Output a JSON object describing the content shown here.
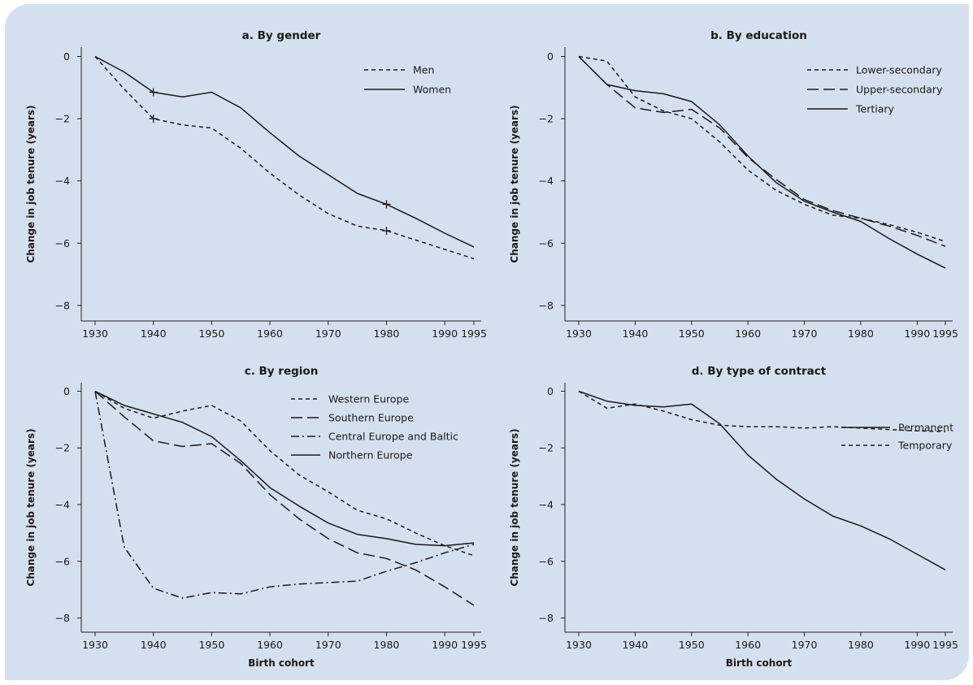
{
  "chart_data": [
    {
      "type": "line",
      "title": "a. By gender",
      "ylabel": "Change in job tenure (years)",
      "xlabel": "",
      "xlim": [
        1930,
        1995
      ],
      "ylim": [
        -8.5,
        0.3
      ],
      "xticks": [
        1930,
        1940,
        1950,
        1960,
        1970,
        1980,
        1990,
        1995
      ],
      "yticks": [
        0,
        -2,
        -4,
        -6,
        -8
      ],
      "legend": "top-right",
      "x": [
        1930,
        1935,
        1940,
        1945,
        1950,
        1955,
        1960,
        1965,
        1970,
        1975,
        1980,
        1985,
        1990,
        1995
      ],
      "series": [
        {
          "name": "Men",
          "dash": "short",
          "values": [
            0,
            -1.05,
            -2.0,
            -2.2,
            -2.3,
            -2.95,
            -3.75,
            -4.45,
            -5.05,
            -5.45,
            -5.6,
            -5.9,
            -6.2,
            -6.5
          ]
        },
        {
          "name": "Women",
          "dash": "solid",
          "values": [
            0,
            -0.5,
            -1.15,
            -1.3,
            -1.15,
            -1.65,
            -2.45,
            -3.2,
            -3.8,
            -4.4,
            -4.75,
            -5.2,
            -5.68,
            -6.12
          ]
        }
      ],
      "markers": [
        {
          "x": 1940,
          "y": -1.15
        },
        {
          "x": 1940,
          "y": -2.0
        },
        {
          "x": 1980,
          "y": -4.75
        },
        {
          "x": 1980,
          "y": -5.6
        }
      ]
    },
    {
      "type": "line",
      "title": "b. By education",
      "ylabel": "Change in job tenure (years)",
      "xlabel": "",
      "xlim": [
        1930,
        1995
      ],
      "ylim": [
        -8.5,
        0.3
      ],
      "xticks": [
        1930,
        1940,
        1950,
        1960,
        1970,
        1980,
        1990,
        1995
      ],
      "yticks": [
        0,
        -2,
        -4,
        -6,
        -8
      ],
      "legend": "top-right",
      "x": [
        1930,
        1935,
        1940,
        1945,
        1950,
        1955,
        1960,
        1965,
        1970,
        1975,
        1980,
        1985,
        1990,
        1995
      ],
      "series": [
        {
          "name": "Lower-secondary",
          "dash": "short",
          "values": [
            0,
            -0.15,
            -1.3,
            -1.75,
            -2.0,
            -2.75,
            -3.65,
            -4.3,
            -4.75,
            -5.1,
            -5.2,
            -5.4,
            -5.65,
            -5.95
          ]
        },
        {
          "name": "Upper-secondary",
          "dash": "long",
          "values": [
            0,
            -0.9,
            -1.65,
            -1.8,
            -1.7,
            -2.3,
            -3.25,
            -3.95,
            -4.6,
            -4.95,
            -5.2,
            -5.45,
            -5.75,
            -6.1
          ]
        },
        {
          "name": "Tertiary",
          "dash": "solid",
          "values": [
            0,
            -0.9,
            -1.1,
            -1.2,
            -1.45,
            -2.2,
            -3.2,
            -4.05,
            -4.65,
            -5.0,
            -5.3,
            -5.85,
            -6.35,
            -6.8
          ]
        }
      ]
    },
    {
      "type": "line",
      "title": "c. By region",
      "ylabel": "Change in job tenure (years)",
      "xlabel": "Birth cohort",
      "xlim": [
        1930,
        1995
      ],
      "ylim": [
        -8.5,
        0.3
      ],
      "xticks": [
        1930,
        1940,
        1950,
        1960,
        1970,
        1980,
        1990,
        1995
      ],
      "yticks": [
        0,
        -2,
        -4,
        -6,
        -8
      ],
      "legend": "top-right",
      "x": [
        1930,
        1935,
        1940,
        1945,
        1950,
        1955,
        1960,
        1965,
        1970,
        1975,
        1980,
        1985,
        1990,
        1995
      ],
      "series": [
        {
          "name": "Western Europe",
          "dash": "short",
          "values": [
            0,
            -0.6,
            -0.95,
            -0.7,
            -0.5,
            -1.05,
            -2.1,
            -2.95,
            -3.55,
            -4.2,
            -4.5,
            -5.0,
            -5.45,
            -5.8
          ]
        },
        {
          "name": "Southern Europe",
          "dash": "long",
          "values": [
            0,
            -0.9,
            -1.75,
            -1.95,
            -1.85,
            -2.55,
            -3.65,
            -4.5,
            -5.2,
            -5.7,
            -5.9,
            -6.3,
            -6.9,
            -7.55
          ]
        },
        {
          "name": "Central Europe and Baltic",
          "dash": "dashdot",
          "values": [
            0,
            -5.5,
            -6.95,
            -7.3,
            -7.1,
            -7.15,
            -6.9,
            -6.8,
            -6.75,
            -6.7,
            -6.35,
            -6.05,
            -5.7,
            -5.4
          ]
        },
        {
          "name": "Northern Europe",
          "dash": "solid",
          "values": [
            0,
            -0.5,
            -0.8,
            -1.1,
            -1.6,
            -2.45,
            -3.4,
            -4.05,
            -4.65,
            -5.05,
            -5.2,
            -5.4,
            -5.45,
            -5.35
          ]
        }
      ]
    },
    {
      "type": "line",
      "title": "d. By type of contract",
      "ylabel": "Change in job tenure (years)",
      "xlabel": "Birth cohort",
      "xlim": [
        1930,
        1995
      ],
      "ylim": [
        -8.5,
        0.3
      ],
      "xticks": [
        1930,
        1940,
        1950,
        1960,
        1970,
        1980,
        1990,
        1995
      ],
      "yticks": [
        0,
        -2,
        -4,
        -6,
        -8
      ],
      "legend": "top-right",
      "x": [
        1930,
        1935,
        1940,
        1945,
        1950,
        1955,
        1960,
        1965,
        1970,
        1975,
        1980,
        1985,
        1990,
        1995
      ],
      "series": [
        {
          "name": "Permanent",
          "dash": "solid",
          "values": [
            0,
            -0.35,
            -0.5,
            -0.55,
            -0.45,
            -1.15,
            -2.25,
            -3.1,
            -3.8,
            -4.4,
            -4.75,
            -5.2,
            -5.75,
            -6.3
          ]
        },
        {
          "name": "Temporary",
          "dash": "short",
          "values": [
            0,
            -0.6,
            -0.45,
            -0.7,
            -1.0,
            -1.2,
            -1.25,
            -1.25,
            -1.3,
            -1.25,
            -1.3,
            -1.35,
            -1.4,
            -1.42
          ]
        }
      ]
    }
  ]
}
